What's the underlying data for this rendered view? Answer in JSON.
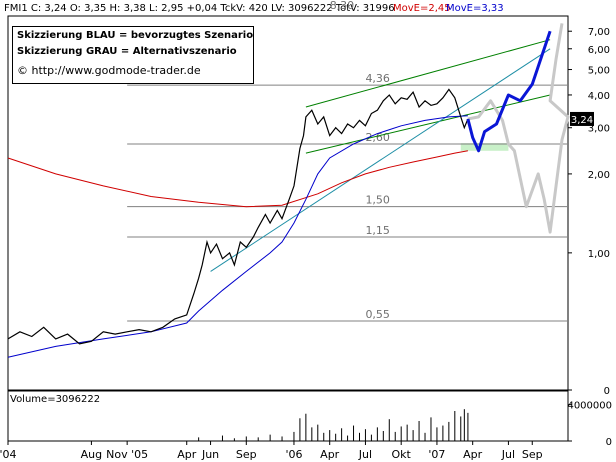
{
  "header": {
    "text": "FMI1 C: 3,24 O: 3,35 H: 3,38 L: 2,95 +0,04 TckV: 420 LV: 3096222 TotV: 31996",
    "move1": "MovE=2,45",
    "move2": "MovE=3,33"
  },
  "legend": {
    "line1": "Skizzierung BLAU = bevorzugtes Szenario",
    "line2": "Skizzierung GRAU = Alternativszenario",
    "line3": "© http://www.godmode-trader.de"
  },
  "volume_label": "Volume=3096222",
  "colors": {
    "price": "#000000",
    "ma_red": "#d00000",
    "ma_blue": "#0000cc",
    "channel_green": "#008000",
    "trend_teal": "#1f8fa6",
    "blue_scenario": "#0a16d6",
    "grey_scenario": "#c8c8c8",
    "support_zone": "#c8f0c8",
    "move1": "#d00000",
    "move2": "#0000cc"
  },
  "chart_data": {
    "type": "line",
    "x_tick_labels": [
      "'04",
      "Aug",
      "Nov '05",
      "Apr",
      "Jun",
      "Sep",
      "'06",
      "Apr",
      "Jul",
      "Okt",
      "'07",
      "Apr",
      "Jul",
      "Sep"
    ],
    "x_tick_time": [
      0,
      7,
      10,
      15,
      17,
      20,
      24,
      27,
      30,
      33,
      36,
      39,
      42,
      44
    ],
    "y_axis": {
      "scale": "log",
      "tick_labels": [
        "1,00",
        "2,00",
        "3,00",
        "4,00",
        "5,00",
        "6,00",
        "7,00",
        "0"
      ],
      "tick_values": [
        1,
        2,
        3,
        4,
        5,
        6,
        7,
        0.3
      ],
      "ylim": [
        0.3,
        8.0
      ]
    },
    "last_price_label": "3,24",
    "last_price": 3.24,
    "levels": [
      {
        "label": "8,30",
        "value": 8.3
      },
      {
        "label": "4,36",
        "value": 4.36
      },
      {
        "label": "2,60",
        "value": 2.6
      },
      {
        "label": "1,50",
        "value": 1.5
      },
      {
        "label": "1,15",
        "value": 1.15
      },
      {
        "label": "0,55",
        "value": 0.55
      }
    ],
    "price": [
      [
        0,
        0.47
      ],
      [
        1,
        0.5
      ],
      [
        2,
        0.48
      ],
      [
        3,
        0.52
      ],
      [
        4,
        0.47
      ],
      [
        5,
        0.49
      ],
      [
        6,
        0.45
      ],
      [
        7,
        0.46
      ],
      [
        8,
        0.5
      ],
      [
        9,
        0.49
      ],
      [
        10,
        0.5
      ],
      [
        11,
        0.51
      ],
      [
        12,
        0.5
      ],
      [
        13,
        0.52
      ],
      [
        14,
        0.56
      ],
      [
        15,
        0.58
      ],
      [
        15.6,
        0.7
      ],
      [
        16,
        0.8
      ],
      [
        16.3,
        0.9
      ],
      [
        16.7,
        1.1
      ],
      [
        17,
        1.0
      ],
      [
        17.5,
        1.08
      ],
      [
        18,
        0.95
      ],
      [
        18.6,
        1.0
      ],
      [
        19,
        0.9
      ],
      [
        19.5,
        1.1
      ],
      [
        20,
        1.05
      ],
      [
        20.6,
        1.15
      ],
      [
        21,
        1.25
      ],
      [
        21.6,
        1.4
      ],
      [
        22,
        1.3
      ],
      [
        22.6,
        1.45
      ],
      [
        23,
        1.35
      ],
      [
        23.6,
        1.6
      ],
      [
        24,
        1.8
      ],
      [
        24.5,
        2.5
      ],
      [
        24.8,
        2.8
      ],
      [
        25,
        3.3
      ],
      [
        25.5,
        3.5
      ],
      [
        26,
        3.1
      ],
      [
        26.5,
        3.3
      ],
      [
        27,
        2.8
      ],
      [
        27.5,
        3.0
      ],
      [
        28,
        2.85
      ],
      [
        28.5,
        3.1
      ],
      [
        29,
        3.0
      ],
      [
        29.5,
        3.2
      ],
      [
        30,
        3.05
      ],
      [
        30.5,
        3.4
      ],
      [
        31,
        3.5
      ],
      [
        31.5,
        3.8
      ],
      [
        32,
        4.0
      ],
      [
        32.5,
        3.7
      ],
      [
        33,
        3.9
      ],
      [
        33.5,
        3.85
      ],
      [
        34,
        4.1
      ],
      [
        34.5,
        3.6
      ],
      [
        35,
        3.8
      ],
      [
        35.5,
        3.65
      ],
      [
        36,
        3.7
      ],
      [
        36.5,
        3.9
      ],
      [
        37,
        4.2
      ],
      [
        37.5,
        3.9
      ],
      [
        38,
        3.3
      ],
      [
        38.3,
        3.0
      ],
      [
        38.6,
        3.24
      ]
    ],
    "ma_red": [
      [
        0,
        2.3
      ],
      [
        4,
        2.0
      ],
      [
        8,
        1.8
      ],
      [
        12,
        1.64
      ],
      [
        16,
        1.56
      ],
      [
        20,
        1.5
      ],
      [
        23,
        1.52
      ],
      [
        26,
        1.68
      ],
      [
        28,
        1.85
      ],
      [
        30,
        2.0
      ],
      [
        32,
        2.12
      ],
      [
        34,
        2.22
      ],
      [
        36,
        2.32
      ],
      [
        37.5,
        2.4
      ],
      [
        38.6,
        2.45
      ]
    ],
    "ma_blue": [
      [
        0,
        0.4
      ],
      [
        4,
        0.44
      ],
      [
        8,
        0.47
      ],
      [
        12,
        0.5
      ],
      [
        15,
        0.54
      ],
      [
        16,
        0.6
      ],
      [
        18,
        0.72
      ],
      [
        20,
        0.85
      ],
      [
        22,
        1.0
      ],
      [
        23,
        1.1
      ],
      [
        24,
        1.3
      ],
      [
        25,
        1.6
      ],
      [
        26,
        2.0
      ],
      [
        27,
        2.3
      ],
      [
        29,
        2.6
      ],
      [
        31,
        2.85
      ],
      [
        33,
        3.05
      ],
      [
        35,
        3.2
      ],
      [
        37,
        3.3
      ],
      [
        38.6,
        3.33
      ]
    ],
    "channel_upper": [
      [
        25,
        3.6
      ],
      [
        45.5,
        6.5
      ]
    ],
    "channel_lower": [
      [
        25,
        2.4
      ],
      [
        45.5,
        4.0
      ]
    ],
    "trendline": [
      [
        17,
        0.85
      ],
      [
        45.5,
        6.0
      ]
    ],
    "support_zone": {
      "from": 38,
      "to": 42,
      "low": 2.45,
      "high": 2.62
    },
    "blue_scenario": [
      [
        38.6,
        3.24
      ],
      [
        39,
        2.75
      ],
      [
        39.5,
        2.45
      ],
      [
        40,
        2.9
      ],
      [
        41,
        3.1
      ],
      [
        42,
        4.0
      ],
      [
        43,
        3.8
      ],
      [
        44,
        4.4
      ],
      [
        45.5,
        7.0
      ]
    ],
    "grey_scenario": [
      [
        38.6,
        3.24
      ],
      [
        39.5,
        3.3
      ],
      [
        40.5,
        3.8
      ],
      [
        41.5,
        3.2
      ],
      [
        42,
        2.6
      ],
      [
        42.5,
        2.45
      ],
      [
        43.5,
        1.5
      ],
      [
        44.5,
        2.0
      ],
      [
        45,
        1.6
      ],
      [
        45.5,
        1.2
      ],
      [
        46.5,
        2.7
      ],
      [
        47,
        3.3
      ],
      [
        45.5,
        3.8
      ],
      [
        46,
        5.5
      ],
      [
        46.5,
        7.5
      ]
    ],
    "volume": {
      "tick_labels": [
        "4000000",
        "0"
      ],
      "tick_values": [
        4000000,
        0
      ],
      "ylim": [
        0,
        5500000
      ],
      "bars": [
        [
          16,
          400000
        ],
        [
          18,
          600000
        ],
        [
          19,
          300000
        ],
        [
          20,
          500000
        ],
        [
          21,
          400000
        ],
        [
          22,
          700000
        ],
        [
          23,
          500000
        ],
        [
          24,
          1000000
        ],
        [
          24.5,
          2500000
        ],
        [
          25,
          3000000
        ],
        [
          25.5,
          1500000
        ],
        [
          26,
          1800000
        ],
        [
          26.5,
          900000
        ],
        [
          27,
          1200000
        ],
        [
          27.5,
          800000
        ],
        [
          28,
          1400000
        ],
        [
          28.5,
          600000
        ],
        [
          29,
          1700000
        ],
        [
          29.5,
          900000
        ],
        [
          30,
          1300000
        ],
        [
          30.5,
          700000
        ],
        [
          31,
          1500000
        ],
        [
          31.5,
          1100000
        ],
        [
          32,
          2400000
        ],
        [
          32.5,
          1000000
        ],
        [
          33,
          1600000
        ],
        [
          33.5,
          1800000
        ],
        [
          34,
          1200000
        ],
        [
          34.5,
          2200000
        ],
        [
          35,
          900000
        ],
        [
          35.5,
          2600000
        ],
        [
          36,
          1500000
        ],
        [
          36.5,
          1700000
        ],
        [
          37,
          2100000
        ],
        [
          37.5,
          3300000
        ],
        [
          38,
          2700000
        ],
        [
          38.3,
          3500000
        ],
        [
          38.6,
          3096222
        ]
      ]
    }
  }
}
